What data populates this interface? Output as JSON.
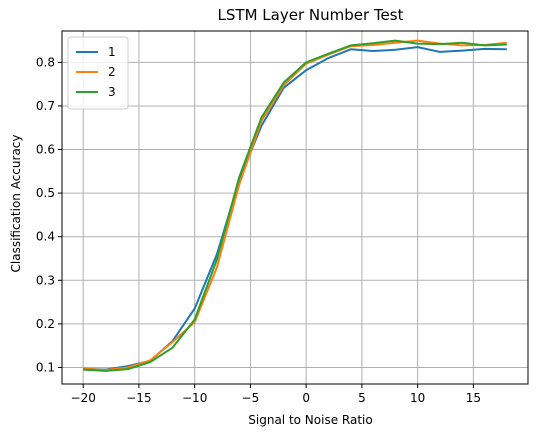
{
  "chart_data": {
    "type": "line",
    "title": "LSTM Layer Number Test",
    "xlabel": "Signal to Noise Ratio",
    "ylabel": "Classification Accuracy",
    "xlim": [
      -21.9,
      19.9
    ],
    "ylim": [
      0.062,
      0.872
    ],
    "xticks": [
      -20,
      -15,
      -10,
      -5,
      0,
      5,
      10,
      15
    ],
    "xtick_labels": [
      "−20",
      "−15",
      "−10",
      "−5",
      "0",
      "5",
      "10",
      "15"
    ],
    "yticks": [
      0.1,
      0.2,
      0.3,
      0.4,
      0.5,
      0.6,
      0.7,
      0.8
    ],
    "ytick_labels": [
      "0.1",
      "0.2",
      "0.3",
      "0.4",
      "0.5",
      "0.6",
      "0.7",
      "0.8"
    ],
    "grid": true,
    "legend_position": "top-left",
    "x": [
      -20,
      -18,
      -16,
      -14,
      -12,
      -10,
      -8,
      -6,
      -4,
      -2,
      0,
      2,
      4,
      6,
      8,
      10,
      12,
      14,
      16,
      18
    ],
    "series": [
      {
        "name": "1",
        "color": "#1f77b4",
        "values": [
          0.097,
          0.095,
          0.103,
          0.115,
          0.16,
          0.235,
          0.36,
          0.53,
          0.655,
          0.742,
          0.782,
          0.81,
          0.83,
          0.826,
          0.829,
          0.835,
          0.824,
          0.827,
          0.831,
          0.83
        ]
      },
      {
        "name": "2",
        "color": "#ff7f0e",
        "values": [
          0.097,
          0.094,
          0.1,
          0.116,
          0.158,
          0.204,
          0.33,
          0.52,
          0.666,
          0.748,
          0.797,
          0.818,
          0.837,
          0.84,
          0.845,
          0.85,
          0.843,
          0.839,
          0.84,
          0.845
        ]
      },
      {
        "name": "3",
        "color": "#2ca02c",
        "values": [
          0.095,
          0.092,
          0.096,
          0.112,
          0.145,
          0.21,
          0.348,
          0.537,
          0.674,
          0.754,
          0.8,
          0.82,
          0.839,
          0.844,
          0.85,
          0.843,
          0.842,
          0.845,
          0.839,
          0.841
        ]
      }
    ]
  }
}
